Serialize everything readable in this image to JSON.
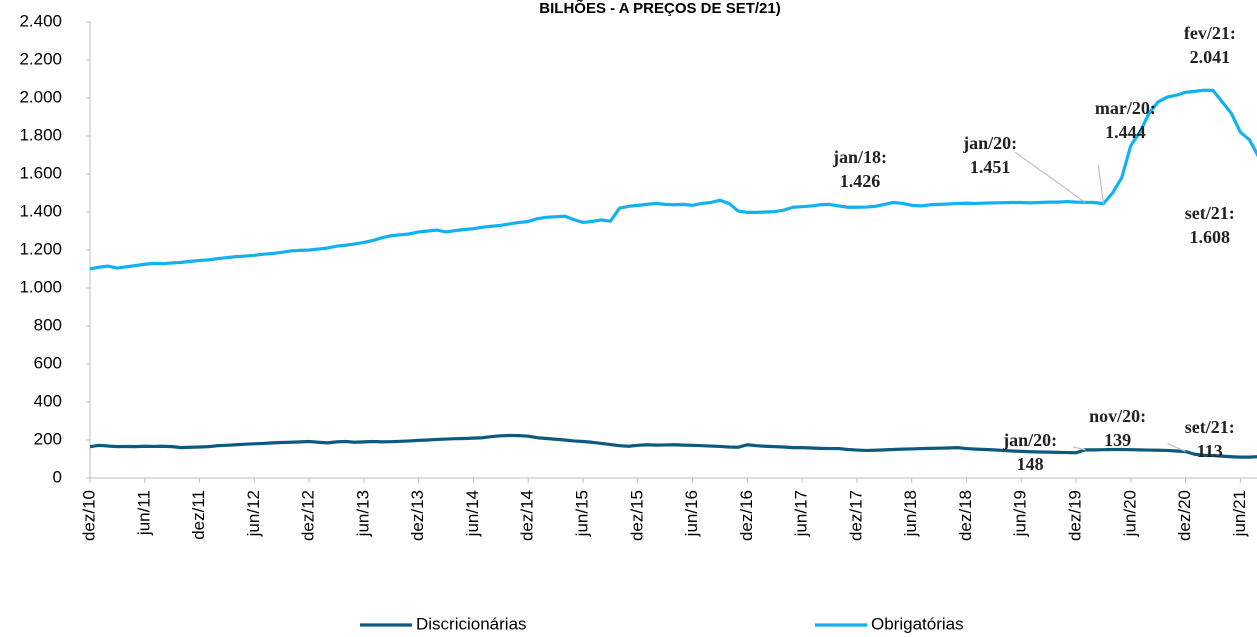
{
  "chart_data": {
    "type": "line",
    "title": "BILHÕES - A PREÇOS DE SET/21)",
    "categories": [
      "dez/10",
      null,
      null,
      null,
      null,
      null,
      "jun/11",
      null,
      null,
      null,
      null,
      null,
      "dez/11",
      null,
      null,
      null,
      null,
      null,
      "jun/12",
      null,
      null,
      null,
      null,
      null,
      "dez/12",
      null,
      null,
      null,
      null,
      null,
      "jun/13",
      null,
      null,
      null,
      null,
      null,
      "dez/13",
      null,
      null,
      null,
      null,
      null,
      "jun/14",
      null,
      null,
      null,
      null,
      null,
      "dez/14",
      null,
      null,
      null,
      null,
      null,
      "jun/15",
      null,
      null,
      null,
      null,
      null,
      "dez/15",
      null,
      null,
      null,
      null,
      null,
      "jun/16",
      null,
      null,
      null,
      null,
      null,
      "dez/16",
      null,
      null,
      null,
      null,
      null,
      "jun/17",
      null,
      null,
      null,
      null,
      null,
      "dez/17",
      null,
      null,
      null,
      null,
      null,
      "jun/18",
      null,
      null,
      null,
      null,
      null,
      "dez/18",
      null,
      null,
      null,
      null,
      null,
      "jun/19",
      null,
      null,
      null,
      null,
      null,
      "dez/19",
      null,
      null,
      null,
      null,
      null,
      "jun/20",
      null,
      null,
      null,
      null,
      null,
      "dez/20",
      null,
      null,
      null,
      null,
      null,
      "jun/21",
      null,
      null,
      null
    ],
    "series": [
      {
        "name": "Discricionárias",
        "color": "#0d5a7f",
        "values": [
          165,
          172,
          168,
          165,
          166,
          165,
          167,
          166,
          167,
          165,
          160,
          162,
          163,
          165,
          170,
          172,
          175,
          178,
          180,
          182,
          185,
          187,
          188,
          190,
          192,
          188,
          185,
          190,
          192,
          188,
          190,
          192,
          190,
          191,
          193,
          195,
          198,
          200,
          203,
          205,
          207,
          208,
          210,
          212,
          218,
          222,
          224,
          223,
          220,
          212,
          208,
          204,
          200,
          195,
          192,
          188,
          182,
          176,
          170,
          167,
          172,
          175,
          173,
          174,
          175,
          173,
          172,
          170,
          168,
          166,
          163,
          162,
          175,
          170,
          167,
          165,
          163,
          160,
          160,
          158,
          156,
          155,
          155,
          150,
          147,
          145,
          146,
          148,
          150,
          152,
          153,
          155,
          156,
          157,
          158,
          160,
          155,
          152,
          150,
          148,
          145,
          142,
          140,
          138,
          137,
          136,
          135,
          134,
          133,
          148,
          148,
          149,
          150,
          150,
          149,
          148,
          147,
          146,
          145,
          142,
          139,
          125,
          120,
          118,
          115,
          112,
          110,
          110,
          112,
          113
        ],
        "value_labels": [
          null,
          null,
          null,
          null,
          null,
          null,
          null,
          null,
          null,
          null,
          null,
          null,
          null,
          null,
          null,
          null,
          null,
          null,
          null,
          null,
          null,
          null,
          null,
          null,
          null,
          null,
          null,
          null,
          null,
          null,
          null,
          null,
          null,
          null,
          null,
          null,
          null,
          null,
          null,
          null,
          null,
          null,
          null,
          null,
          null,
          null,
          null,
          null,
          null,
          null,
          null,
          null,
          null,
          null,
          null,
          null,
          null,
          null,
          null,
          null,
          null,
          null,
          null,
          null,
          null,
          null,
          null,
          null,
          null,
          null,
          null,
          null,
          null,
          null,
          null,
          null,
          null,
          null,
          null,
          null,
          null,
          null,
          null,
          null,
          null,
          null,
          null,
          null,
          null,
          null,
          null,
          null,
          null,
          null,
          null,
          null,
          null,
          null,
          null,
          null,
          null,
          null,
          null,
          null,
          null,
          null,
          null,
          null,
          null,
          "jan/20:\n148",
          null,
          null,
          null,
          null,
          null,
          null,
          null,
          null,
          null,
          null,
          "nov/20:\n139",
          null,
          null,
          null,
          null,
          null,
          null,
          null,
          null,
          "set/21:\n113"
        ]
      },
      {
        "name": "Obrigatórias",
        "color": "#12b1f1",
        "values": [
          1100,
          1110,
          1115,
          1105,
          1112,
          1118,
          1125,
          1130,
          1128,
          1132,
          1135,
          1140,
          1145,
          1148,
          1155,
          1160,
          1165,
          1168,
          1172,
          1178,
          1182,
          1188,
          1195,
          1198,
          1200,
          1205,
          1210,
          1220,
          1225,
          1232,
          1240,
          1250,
          1265,
          1275,
          1280,
          1285,
          1295,
          1300,
          1305,
          1295,
          1302,
          1308,
          1312,
          1320,
          1325,
          1330,
          1338,
          1345,
          1350,
          1365,
          1372,
          1375,
          1378,
          1360,
          1345,
          1350,
          1358,
          1352,
          1420,
          1430,
          1435,
          1440,
          1445,
          1440,
          1438,
          1440,
          1435,
          1445,
          1450,
          1462,
          1445,
          1405,
          1398,
          1398,
          1400,
          1402,
          1410,
          1425,
          1428,
          1432,
          1438,
          1440,
          1432,
          1425,
          1425,
          1426,
          1430,
          1440,
          1450,
          1445,
          1435,
          1432,
          1438,
          1440,
          1442,
          1445,
          1446,
          1445,
          1447,
          1448,
          1449,
          1450,
          1450,
          1448,
          1450,
          1452,
          1452,
          1455,
          1452,
          1451,
          1450,
          1444,
          1500,
          1580,
          1750,
          1820,
          1920,
          1980,
          2005,
          2015,
          2030,
          2035,
          2041,
          2040,
          1980,
          1920,
          1820,
          1780,
          1690,
          1608
        ],
        "value_labels": [
          null,
          null,
          null,
          null,
          null,
          null,
          null,
          null,
          null,
          null,
          null,
          null,
          null,
          null,
          null,
          null,
          null,
          null,
          null,
          null,
          null,
          null,
          null,
          null,
          null,
          null,
          null,
          null,
          null,
          null,
          null,
          null,
          null,
          null,
          null,
          null,
          null,
          null,
          null,
          null,
          null,
          null,
          null,
          null,
          null,
          null,
          null,
          null,
          null,
          null,
          null,
          null,
          null,
          null,
          null,
          null,
          null,
          null,
          null,
          null,
          null,
          null,
          null,
          null,
          null,
          null,
          null,
          null,
          null,
          null,
          null,
          null,
          null,
          null,
          null,
          null,
          null,
          null,
          null,
          null,
          null,
          null,
          null,
          null,
          null,
          "jan/18:\n1.426",
          null,
          null,
          null,
          null,
          null,
          null,
          null,
          null,
          null,
          null,
          null,
          null,
          null,
          null,
          null,
          null,
          null,
          null,
          null,
          null,
          null,
          null,
          null,
          "jan/20:\n1.451",
          null,
          "mar/20:\n1.444",
          null,
          null,
          null,
          null,
          null,
          null,
          null,
          null,
          null,
          null,
          "fev/21:\n2.041",
          null,
          null,
          null,
          null,
          null,
          null,
          "set/21:\n1.608"
        ]
      }
    ],
    "ylim": [
      0,
      2400
    ],
    "yticks": [
      0,
      200,
      400,
      600,
      800,
      {
        "value": 1000,
        "label": "1.000"
      },
      {
        "value": 1200,
        "label": "1.200"
      },
      {
        "value": 1400,
        "label": "1.400"
      },
      {
        "value": 1600,
        "label": "1.600"
      },
      {
        "value": 1800,
        "label": "1.800"
      },
      {
        "value": 2000,
        "label": "2.000"
      },
      {
        "value": 2200,
        "label": "2.200"
      },
      {
        "value": 2400,
        "label": "2.400"
      }
    ],
    "grid": false,
    "legend": "bottom"
  }
}
